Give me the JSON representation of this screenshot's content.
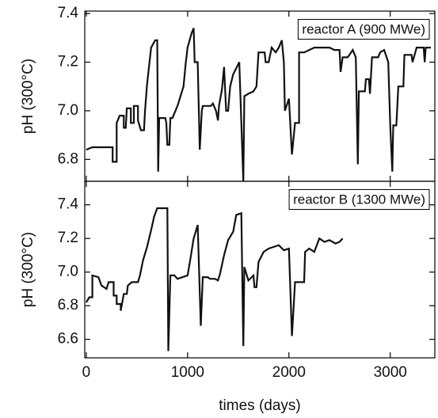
{
  "chart_data": [
    {
      "type": "line",
      "ylabel": "pH (300°C)",
      "xlim": [
        -15,
        3440
      ],
      "xticks": [
        0,
        1000,
        2000,
        3000
      ],
      "ylim": [
        6.71,
        7.41
      ],
      "yticks": [
        6.8,
        {
          "value": 7,
          "label": "7.0"
        },
        7.2,
        7.4
      ],
      "legend": "upper right",
      "x": [
        0,
        60,
        260,
        260,
        300,
        300,
        330,
        370,
        370,
        390,
        400,
        440,
        440,
        470,
        470,
        510,
        510,
        540,
        570,
        580,
        600,
        640,
        680,
        700,
        710,
        720,
        780,
        790,
        800,
        820,
        830,
        850,
        900,
        960,
        980,
        1000,
        1040,
        1060,
        1070,
        1100,
        1120,
        1140,
        1150,
        1230,
        1250,
        1280,
        1300,
        1310,
        1340,
        1360,
        1380,
        1400,
        1420,
        1450,
        1510,
        1550,
        1560,
        1600,
        1650,
        1680,
        1700,
        1760,
        1770,
        1800,
        1830,
        1870,
        1900,
        1930,
        1950,
        1960,
        2000,
        2030,
        2060,
        2100,
        2100,
        2150,
        2200,
        2250,
        2400,
        2450,
        2500,
        2510,
        2530,
        2580,
        2630,
        2660,
        2680,
        2690,
        2750,
        2760,
        2790,
        2800,
        2820,
        2880,
        2900,
        2940,
        2980,
        3000,
        3020,
        3030,
        3060,
        3080,
        3130,
        3140,
        3210,
        3220,
        3260,
        3330,
        3340,
        3350,
        3400
      ],
      "series": [
        {
          "name": "reactor A (900 MWe)",
          "color": "#111111",
          "values": [
            6.84,
            6.85,
            6.85,
            6.79,
            6.79,
            6.95,
            6.98,
            6.98,
            6.93,
            6.93,
            7.01,
            7.01,
            6.95,
            6.95,
            7.02,
            7.02,
            6.96,
            6.92,
            6.92,
            7.0,
            7.11,
            7.26,
            7.29,
            7.29,
            6.75,
            6.97,
            6.97,
            6.95,
            6.86,
            6.86,
            6.97,
            6.97,
            7.02,
            7.1,
            7.19,
            7.26,
            7.32,
            7.34,
            7.2,
            7.2,
            6.84,
            7.0,
            7.02,
            7.02,
            7.03,
            7.0,
            6.96,
            7.02,
            7.09,
            7.18,
            7.0,
            7.0,
            7.1,
            7.15,
            7.2,
            6.71,
            7.06,
            7.07,
            7.08,
            7.1,
            7.24,
            7.24,
            7.2,
            7.2,
            7.26,
            7.24,
            7.26,
            7.29,
            7.2,
            7.0,
            7.05,
            6.82,
            6.95,
            6.95,
            7.24,
            7.24,
            7.25,
            7.26,
            7.26,
            7.25,
            7.25,
            7.16,
            7.22,
            7.22,
            7.25,
            7.22,
            6.78,
            7.08,
            7.08,
            7.13,
            7.13,
            7.07,
            7.22,
            7.22,
            7.24,
            7.25,
            7.2,
            6.94,
            6.75,
            6.94,
            6.94,
            7.1,
            7.1,
            7.23,
            7.23,
            7.2,
            7.26,
            7.26,
            7.2,
            7.26,
            7.26
          ]
        }
      ]
    },
    {
      "type": "line",
      "ylabel": "pH (300°C)",
      "xlabel": "times (days)",
      "xlim": [
        -15,
        3440
      ],
      "xticks": [
        0,
        1000,
        2000,
        3000
      ],
      "ylim": [
        6.49,
        7.54
      ],
      "yticks": [
        6.6,
        6.8,
        {
          "value": 7,
          "label": "7.0"
        },
        7.2,
        7.4
      ],
      "legend": "upper right",
      "x": [
        0,
        30,
        60,
        60,
        120,
        150,
        200,
        220,
        270,
        270,
        300,
        300,
        340,
        340,
        370,
        400,
        410,
        450,
        510,
        530,
        560,
        600,
        640,
        670,
        700,
        760,
        800,
        810,
        830,
        870,
        900,
        950,
        1000,
        1020,
        1060,
        1100,
        1130,
        1150,
        1200,
        1220,
        1270,
        1300,
        1320,
        1360,
        1400,
        1450,
        1480,
        1530,
        1550,
        1560,
        1600,
        1650,
        1660,
        1680,
        1700,
        1750,
        1800,
        1900,
        1950,
        2000,
        2030,
        2060,
        2150,
        2160,
        2200,
        2250,
        2300,
        2350,
        2400,
        2460,
        2500,
        2530
      ],
      "series": [
        {
          "name": "reactor B (1300 MWe)",
          "color": "#111111",
          "values": [
            6.82,
            6.85,
            6.85,
            6.98,
            6.97,
            6.92,
            6.9,
            6.94,
            6.94,
            6.86,
            6.86,
            6.81,
            6.81,
            6.77,
            6.87,
            6.87,
            6.92,
            6.94,
            6.94,
            6.98,
            7.07,
            7.15,
            7.25,
            7.33,
            7.38,
            7.38,
            7.38,
            6.53,
            6.98,
            6.98,
            6.96,
            6.97,
            6.98,
            7.05,
            7.2,
            7.28,
            6.68,
            6.97,
            6.97,
            6.96,
            6.96,
            6.95,
            6.99,
            7.1,
            7.19,
            7.24,
            7.34,
            7.35,
            6.56,
            7.03,
            6.95,
            6.98,
            6.91,
            6.91,
            7.06,
            7.12,
            7.14,
            7.16,
            7.13,
            7.14,
            6.62,
            6.94,
            6.94,
            7.12,
            7.14,
            7.12,
            7.2,
            7.18,
            7.19,
            7.17,
            7.18,
            7.2
          ]
        }
      ]
    }
  ]
}
